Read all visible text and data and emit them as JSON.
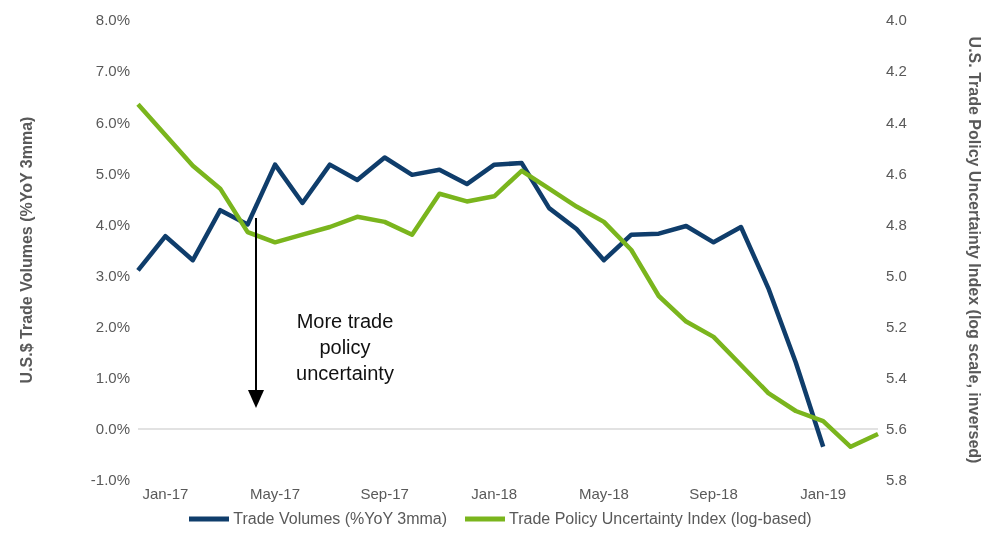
{
  "chart_data": {
    "type": "line",
    "ylabel": "U.S.$ Trade Volumes (%YoY 3mma)",
    "y2label": "U.S. Trade Policy Uncertainty Index (log scale, inversed)",
    "categories": [
      null,
      "Jan-17",
      null,
      null,
      null,
      "May-17",
      null,
      null,
      null,
      "Sep-17",
      null,
      null,
      null,
      "Jan-18",
      null,
      null,
      null,
      "May-18",
      null,
      null,
      null,
      "Sep-18",
      null,
      null,
      null,
      "Jan-19",
      null,
      null
    ],
    "series": [
      {
        "name": "Trade Volumes (%YoY 3mma)",
        "color": "#0f3d6b",
        "values": [
          3.1,
          3.77,
          3.3,
          4.28,
          4.0,
          5.17,
          4.42,
          5.17,
          4.87,
          5.31,
          4.97,
          5.07,
          4.79,
          5.17,
          5.2,
          4.32,
          3.91,
          3.3,
          3.8,
          3.82,
          3.97,
          3.65,
          3.95,
          2.75,
          1.3,
          -0.35,
          null,
          null
        ]
      },
      {
        "name": "Trade Policy Uncertainty Index (log-based)",
        "color": "#7ab51d",
        "axis": "y2",
        "values": [
          4.33,
          4.45,
          4.57,
          4.66,
          4.83,
          4.87,
          4.84,
          4.81,
          4.77,
          4.79,
          4.84,
          4.68,
          4.71,
          4.69,
          4.59,
          4.66,
          4.73,
          4.79,
          4.9,
          5.08,
          5.18,
          5.24,
          5.35,
          5.46,
          5.53,
          5.57,
          5.67,
          5.62
        ]
      }
    ],
    "ylim": [
      -1,
      8
    ],
    "yticks": [
      {
        "value": -1,
        "label": "-1.0%"
      },
      {
        "value": 0,
        "label": "0.0%"
      },
      {
        "value": 1,
        "label": "1.0%"
      },
      {
        "value": 2,
        "label": "2.0%"
      },
      {
        "value": 3,
        "label": "3.0%"
      },
      {
        "value": 4,
        "label": "4.0%"
      },
      {
        "value": 5,
        "label": "5.0%"
      },
      {
        "value": 6,
        "label": "6.0%"
      },
      {
        "value": 7,
        "label": "7.0%"
      },
      {
        "value": 8,
        "label": "8.0%"
      }
    ],
    "y2lim": [
      5.8,
      4.0
    ],
    "y2ticks": [
      {
        "value": 4.0,
        "label": "4.0"
      },
      {
        "value": 4.2,
        "label": "4.2"
      },
      {
        "value": 4.4,
        "label": "4.4"
      },
      {
        "value": 4.6,
        "label": "4.6"
      },
      {
        "value": 4.8,
        "label": "4.8"
      },
      {
        "value": 5.0,
        "label": "5.0"
      },
      {
        "value": 5.2,
        "label": "5.2"
      },
      {
        "value": 5.4,
        "label": "5.4"
      },
      {
        "value": 5.6,
        "label": "5.6"
      },
      {
        "value": 5.8,
        "label": "5.8"
      }
    ],
    "ref_lines": [
      {
        "axis": "y",
        "value": 0,
        "color": "#d9d9d9"
      }
    ],
    "annotations": [
      "More trade policy uncertainty"
    ],
    "grid": false,
    "legend": "bottom",
    "marker": "none",
    "line_style": "solid"
  }
}
